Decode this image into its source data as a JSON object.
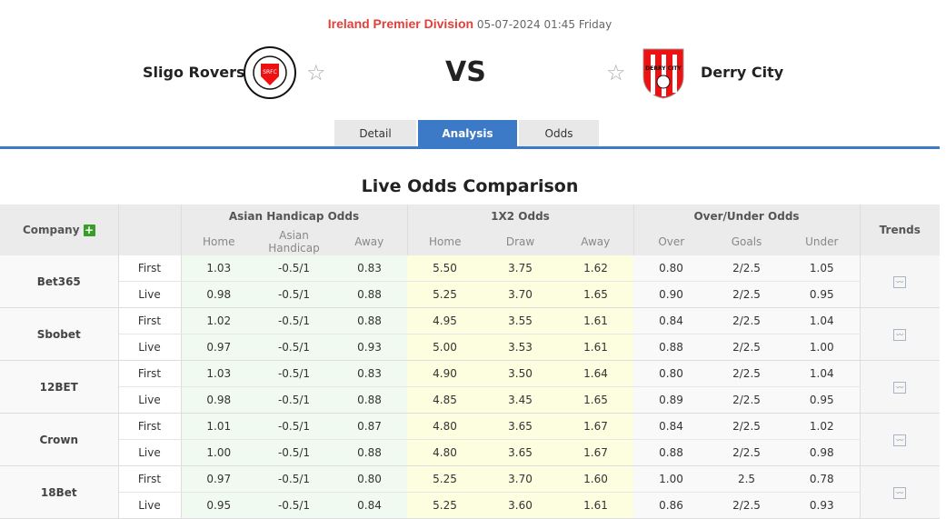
{
  "match": {
    "league": "Ireland Premier Division",
    "datetime": "05-07-2024 01:45 Friday",
    "home": "Sligo Rovers",
    "away": "Derry City",
    "vs": "VS",
    "home_logo_text": "SRFC",
    "away_logo_text": "DERRY CITY"
  },
  "tabs": [
    {
      "label": "Detail"
    },
    {
      "label": "Analysis",
      "active": true
    },
    {
      "label": "Odds"
    }
  ],
  "title": "Live Odds Comparison",
  "headers": {
    "company": "Company",
    "ah": "Asian Handicap Odds",
    "x12": "1X2 Odds",
    "ou": "Over/Under Odds",
    "trends": "Trends",
    "sub": [
      "Home",
      "Asian Handicap",
      "Away",
      "Home",
      "Draw",
      "Away",
      "Over",
      "Goals",
      "Under"
    ]
  },
  "companies": [
    {
      "name": "Bet365",
      "rows": [
        [
          "First",
          "1.03",
          "-0.5/1",
          "0.83",
          "5.50",
          "3.75",
          "1.62",
          "0.80",
          "2/2.5",
          "1.05"
        ],
        [
          "Live",
          "0.98",
          "-0.5/1",
          "0.88",
          "5.25",
          "3.70",
          "1.65",
          "0.90",
          "2/2.5",
          "0.95"
        ]
      ]
    },
    {
      "name": "Sbobet",
      "rows": [
        [
          "First",
          "1.02",
          "-0.5/1",
          "0.88",
          "4.95",
          "3.55",
          "1.61",
          "0.84",
          "2/2.5",
          "1.04"
        ],
        [
          "Live",
          "0.97",
          "-0.5/1",
          "0.93",
          "5.00",
          "3.53",
          "1.61",
          "0.88",
          "2/2.5",
          "1.00"
        ]
      ]
    },
    {
      "name": "12BET",
      "rows": [
        [
          "First",
          "1.03",
          "-0.5/1",
          "0.83",
          "4.90",
          "3.50",
          "1.64",
          "0.80",
          "2/2.5",
          "1.04"
        ],
        [
          "Live",
          "0.98",
          "-0.5/1",
          "0.88",
          "4.85",
          "3.45",
          "1.65",
          "0.89",
          "2/2.5",
          "0.95"
        ]
      ]
    },
    {
      "name": "Crown",
      "rows": [
        [
          "First",
          "1.01",
          "-0.5/1",
          "0.87",
          "4.80",
          "3.65",
          "1.67",
          "0.84",
          "2/2.5",
          "1.02"
        ],
        [
          "Live",
          "1.00",
          "-0.5/1",
          "0.88",
          "4.80",
          "3.65",
          "1.67",
          "0.88",
          "2/2.5",
          "0.98"
        ]
      ]
    },
    {
      "name": "18Bet",
      "rows": [
        [
          "First",
          "0.97",
          "-0.5/1",
          "0.80",
          "5.25",
          "3.70",
          "1.60",
          "1.00",
          "2.5",
          "0.78"
        ],
        [
          "Live",
          "0.95",
          "-0.5/1",
          "0.84",
          "5.25",
          "3.60",
          "1.61",
          "0.86",
          "2/2.5",
          "0.93"
        ]
      ]
    }
  ]
}
